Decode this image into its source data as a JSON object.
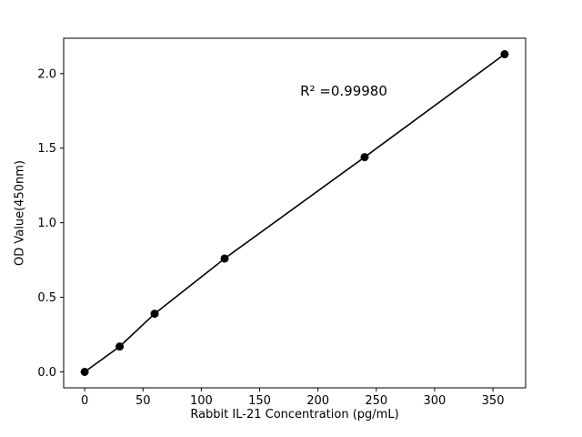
{
  "chart_data": {
    "type": "line",
    "title": "",
    "xlabel": "Rabbit IL-21 Concentration (pg/mL)",
    "ylabel": "OD Value(450nm)",
    "annotation": "R² =0.99980",
    "x": [
      0,
      30,
      60,
      120,
      240,
      360
    ],
    "y": [
      0.0,
      0.17,
      0.39,
      0.76,
      1.44,
      2.13
    ],
    "xlim": [
      -18,
      378
    ],
    "ylim": [
      -0.107,
      2.237
    ],
    "xticks": [
      0,
      50,
      100,
      150,
      200,
      250,
      300,
      350
    ],
    "xtick_labels": [
      "0",
      "50",
      "100",
      "150",
      "200",
      "250",
      "300",
      "350"
    ],
    "yticks": [
      0.0,
      0.5,
      1.0,
      1.5,
      2.0
    ],
    "ytick_labels": [
      "0.0",
      "0.5",
      "1.0",
      "1.5",
      "2.0"
    ],
    "grid": false,
    "legend": null,
    "line_color": "#000000",
    "marker_color": "#000000",
    "background_color": "#ffffff"
  }
}
